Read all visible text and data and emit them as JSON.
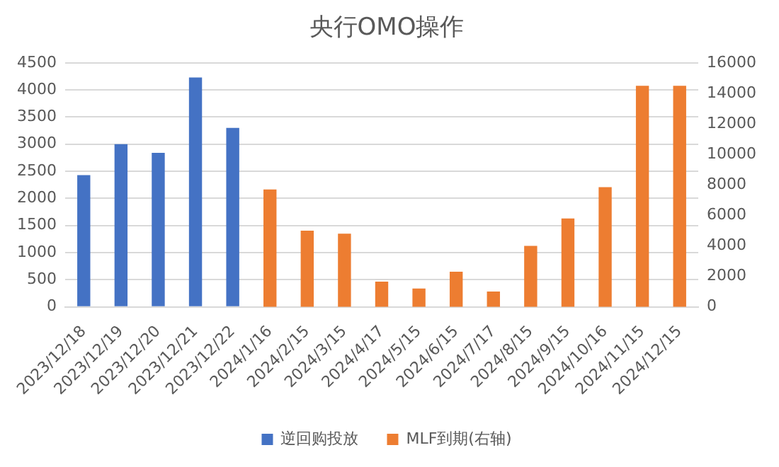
{
  "chart_data": {
    "type": "bar",
    "title": "央行OMO操作",
    "categories": [
      "2023/12/18",
      "2023/12/19",
      "2023/12/20",
      "2023/12/21",
      "2023/12/22",
      "2024/1/16",
      "2024/2/15",
      "2024/3/15",
      "2024/4/17",
      "2024/5/15",
      "2024/6/15",
      "2024/7/17",
      "2024/8/15",
      "2024/9/15",
      "2024/10/16",
      "2024/11/15",
      "2024/12/15"
    ],
    "series": [
      {
        "name": "逆回购投放",
        "color": "#4472c4",
        "values": [
          2430,
          3000,
          2840,
          4230,
          3300,
          null,
          null,
          null,
          null,
          null,
          null,
          null,
          null,
          null,
          null,
          null,
          null
        ]
      },
      {
        "name": "MLF到期(右轴)",
        "color": "#ed7d31",
        "axis": "y2",
        "values": [
          null,
          null,
          null,
          null,
          null,
          7700,
          5000,
          4800,
          1650,
          1200,
          2300,
          1000,
          4000,
          5800,
          7850,
          14500,
          14500
        ]
      }
    ],
    "ylim": [
      0,
      4500
    ],
    "yticks": [
      0,
      500,
      1000,
      1500,
      2000,
      2500,
      3000,
      3500,
      4000,
      4500
    ],
    "y2lim": [
      0,
      16000
    ],
    "y2ticks": [
      0,
      2000,
      4000,
      6000,
      8000,
      10000,
      12000,
      14000,
      16000
    ],
    "grid": "y",
    "legend": "bottom"
  }
}
